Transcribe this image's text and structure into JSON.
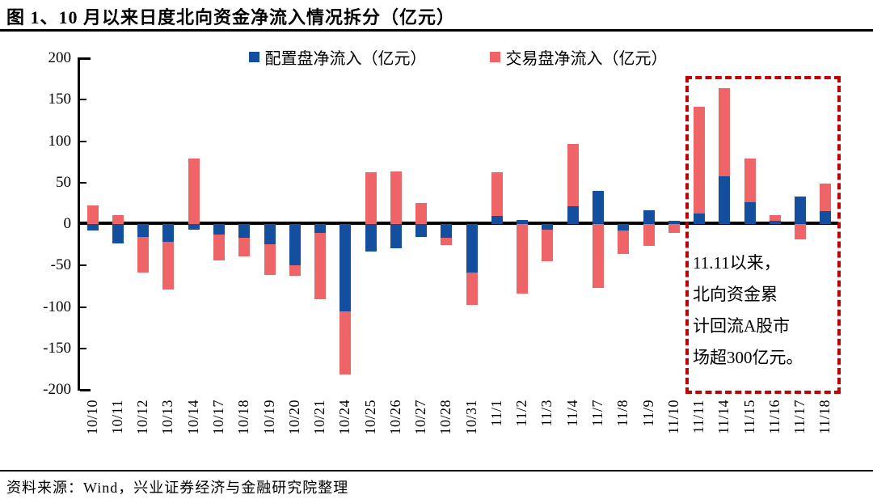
{
  "figure": {
    "title": "图 1、10 月以来日度北向资金净流入情况拆分（亿元）",
    "source": "资料来源：Wind，兴业证券经济与金融研究院整理"
  },
  "annotation": {
    "lines": [
      "11.11以来，",
      "北向资金累",
      "计回流A股市",
      "场超300亿元。"
    ]
  },
  "colors": {
    "allocation_blue": "#134F9E",
    "trading_red": "#EF6567",
    "highlight_box_red": "#C00000",
    "axis_black": "#000000",
    "background": "#FFFFFF"
  },
  "chart_data": {
    "type": "bar",
    "stacked": true,
    "title": "图 1、10 月以来日度北向资金净流入情况拆分（亿元）",
    "unit": "亿元",
    "categories": [
      "10/10",
      "10/11",
      "10/12",
      "10/13",
      "10/14",
      "10/17",
      "10/18",
      "10/19",
      "10/20",
      "10/21",
      "10/24",
      "10/25",
      "10/26",
      "10/27",
      "10/28",
      "10/31",
      "11/1",
      "11/2",
      "11/3",
      "11/4",
      "11/7",
      "11/8",
      "11/9",
      "11/10",
      "11/11",
      "11/14",
      "11/15",
      "11/16",
      "11/17",
      "11/18"
    ],
    "series": [
      {
        "name": "配置盘净流入（亿元）",
        "color": "#134F9E",
        "values": [
          -8,
          -23,
          -16,
          -21,
          -7,
          -13,
          -17,
          -24,
          -50,
          -11,
          -105,
          -33,
          -29,
          -16,
          -17,
          -59,
          10,
          5,
          -7,
          21,
          40,
          -8,
          17,
          4,
          13,
          58,
          26,
          4,
          33,
          16
        ]
      },
      {
        "name": "交易盘净流入（亿元）",
        "color": "#EF6567",
        "values": [
          22,
          11,
          -43,
          -58,
          79,
          -31,
          -22,
          -37,
          -12,
          -80,
          -76,
          62,
          63,
          25,
          -8,
          -39,
          52,
          -84,
          -38,
          76,
          -77,
          -28,
          -26,
          -11,
          128,
          106,
          53,
          7,
          -19,
          33
        ]
      }
    ],
    "ylim": [
      -200,
      200
    ],
    "yticks": [
      200,
      150,
      100,
      50,
      0,
      -50,
      -100,
      -150,
      -200
    ],
    "grid": false,
    "legend_position": "top",
    "highlight_box_categories": [
      "11/11",
      "11/18"
    ]
  }
}
